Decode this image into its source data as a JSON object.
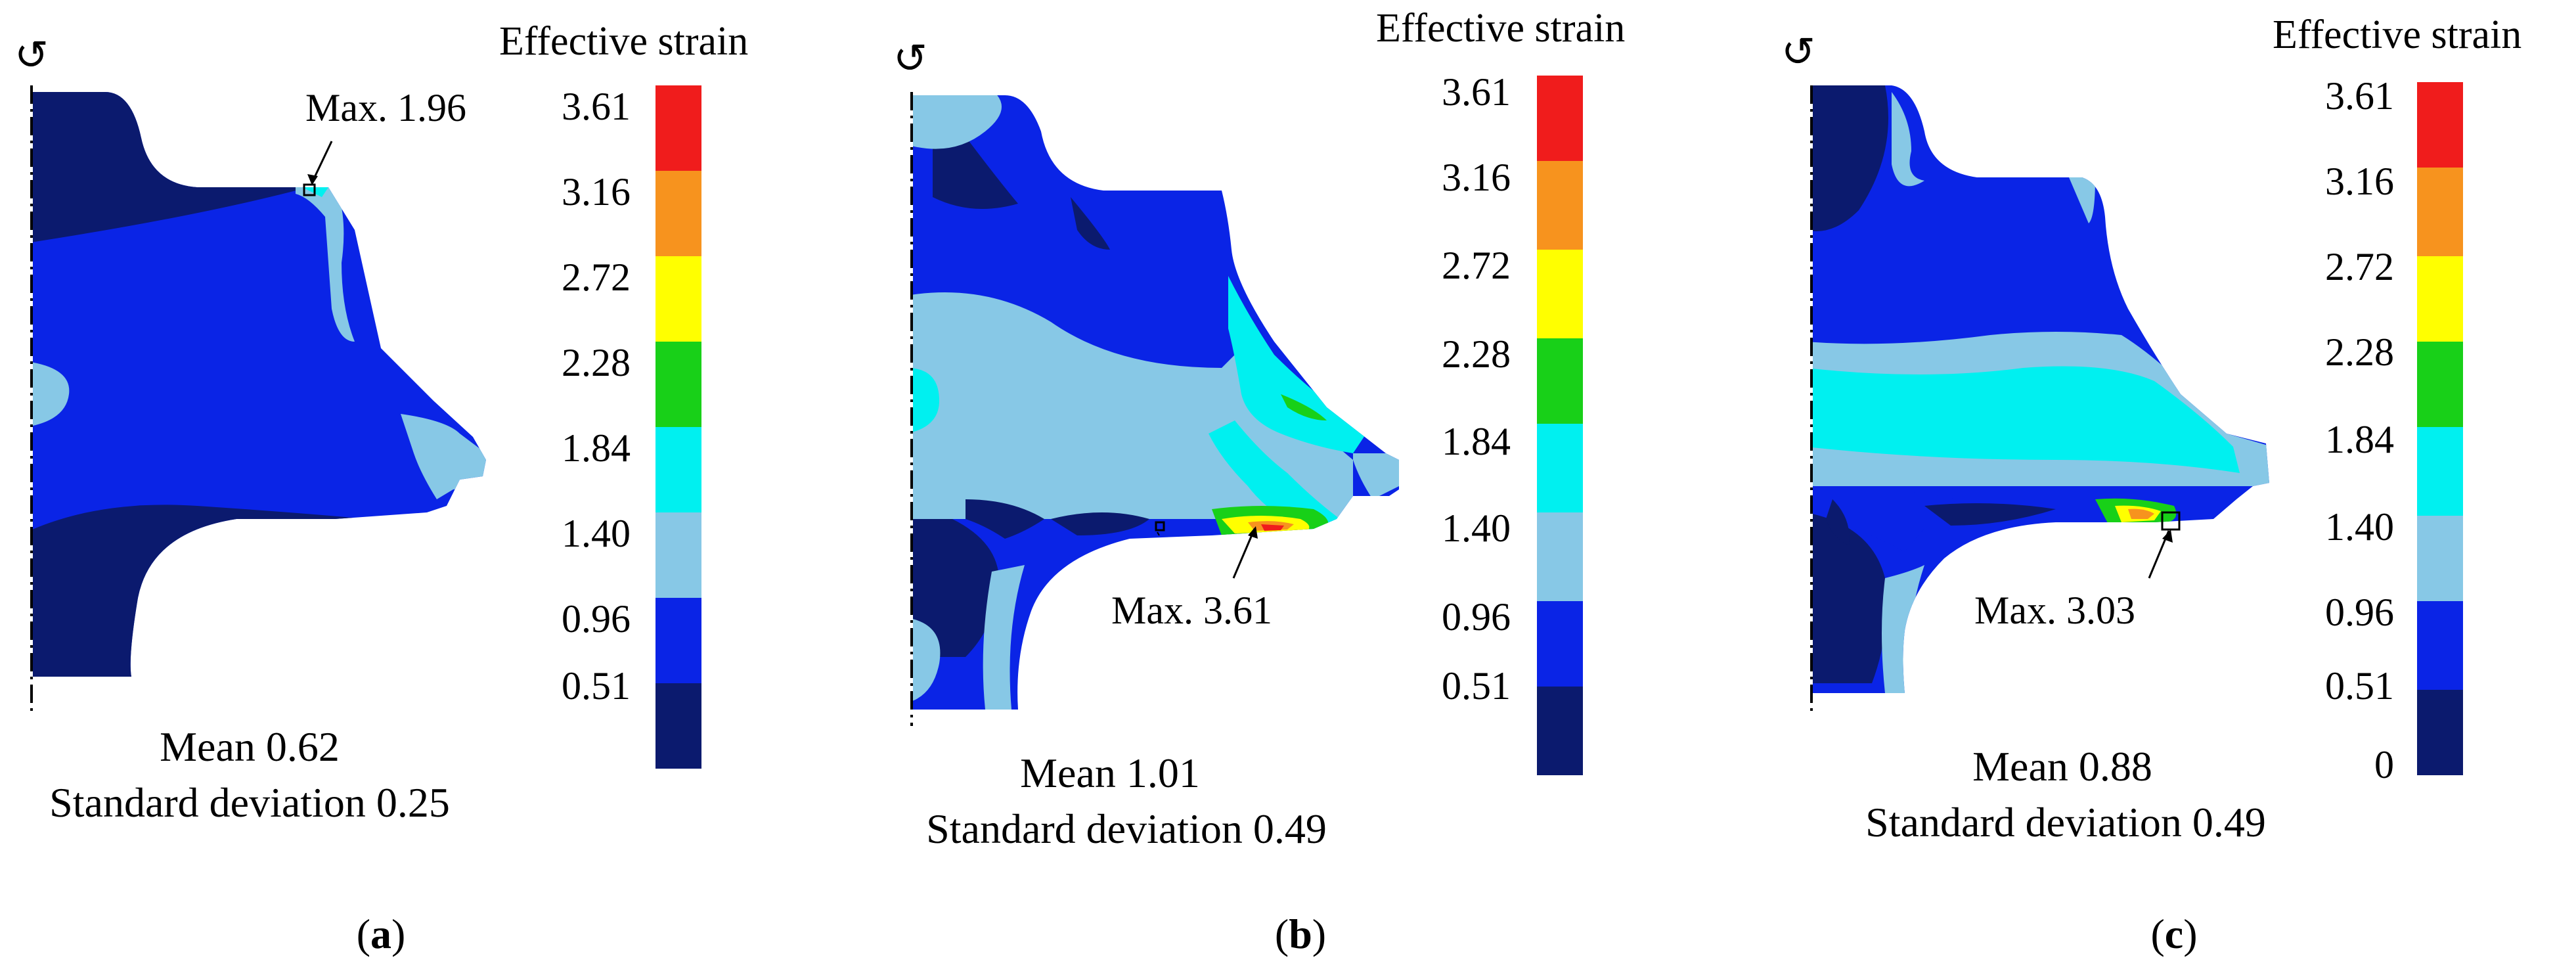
{
  "legend_title": "Effective strain",
  "palette": {
    "navy": "#0b1a6e",
    "blue": "#0a24e6",
    "lightblue": "#87c8e6",
    "cyan": "#00f0f0",
    "green": "#18d018",
    "yellow": "#ffff00",
    "orange": "#f7931e",
    "red": "#f01c1c"
  },
  "panels": [
    {
      "id": "a",
      "caption_letter": "a",
      "max_label": "Max. 1.96",
      "mean_label": "Mean 0.62",
      "sd_label": "Standard deviation 0.25",
      "legend_ticks": [
        "3.61",
        "3.16",
        "2.72",
        "2.28",
        "1.84",
        "1.40",
        "0.96",
        "0.51"
      ]
    },
    {
      "id": "b",
      "caption_letter": "b",
      "max_label": "Max. 3.61",
      "mean_label": "Mean 1.01",
      "sd_label": "Standard deviation 0.49",
      "legend_ticks": [
        "3.61",
        "3.16",
        "2.72",
        "2.28",
        "1.84",
        "1.40",
        "0.96",
        "0.51"
      ]
    },
    {
      "id": "c",
      "caption_letter": "c",
      "max_label": "Max. 3.03",
      "mean_label": "Mean 0.88",
      "sd_label": "Standard deviation 0.49",
      "legend_ticks": [
        "3.61",
        "3.16",
        "2.72",
        "2.28",
        "1.84",
        "1.40",
        "0.96",
        "0.51",
        "0"
      ]
    }
  ]
}
